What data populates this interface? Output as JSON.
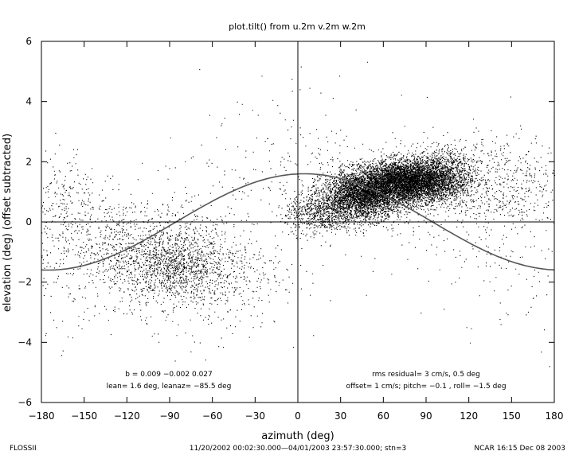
{
  "chart_data": {
    "type": "scatter",
    "title": "plot.tilt() from u.2m v.2m w.2m",
    "xlabel": "azimuth (deg)",
    "ylabel": "elevation (deg)  (offset subtracted)",
    "xlim": [
      -180,
      180
    ],
    "ylim": [
      -6,
      6
    ],
    "xticks": [
      -180,
      -150,
      -120,
      -90,
      -60,
      -30,
      0,
      30,
      60,
      90,
      120,
      150,
      180
    ],
    "yticks": [
      6,
      4,
      2,
      0,
      -2,
      -4,
      -6
    ],
    "xtick_labels": [
      "−180",
      "−150",
      "−120",
      "−90",
      "−60",
      "−30",
      "0",
      "30",
      "60",
      "90",
      "120",
      "150",
      "180"
    ],
    "ytick_labels": [
      "6",
      "4",
      "2",
      "0",
      "−2",
      "−4",
      "−6"
    ],
    "grid": false,
    "reference_lines": {
      "x": 0,
      "y": 0
    },
    "fit_curve": {
      "amplitude_deg": 1.6,
      "azimuth_deg": -85.5,
      "description": "elevation = 1.6*sin(azimuth + 85.5 - 90)"
    },
    "point_clusters": [
      {
        "x_center": -88,
        "y_center": -1.5,
        "x_spread": 18,
        "y_spread": 0.55,
        "weight": 900
      },
      {
        "x_center": -120,
        "y_center": -0.9,
        "x_spread": 25,
        "y_spread": 0.9,
        "weight": 700
      },
      {
        "x_center": -60,
        "y_center": -1.6,
        "x_spread": 25,
        "y_spread": 1.0,
        "weight": 600
      },
      {
        "x_center": 15,
        "y_center": 0.3,
        "x_spread": 12,
        "y_spread": 0.35,
        "weight": 700
      },
      {
        "x_center": 45,
        "y_center": 0.9,
        "x_spread": 14,
        "y_spread": 0.4,
        "weight": 3500
      },
      {
        "x_center": 75,
        "y_center": 1.35,
        "x_spread": 15,
        "y_spread": 0.35,
        "weight": 4500
      },
      {
        "x_center": 100,
        "y_center": 1.5,
        "x_spread": 12,
        "y_spread": 0.45,
        "weight": 1500
      },
      {
        "x_center": 140,
        "y_center": 1.3,
        "x_spread": 25,
        "y_spread": 0.8,
        "weight": 600
      },
      {
        "x_center": -165,
        "y_center": 0.5,
        "x_spread": 12,
        "y_spread": 1.0,
        "weight": 250
      }
    ],
    "annotations": {
      "left_line1": "b =  0.009 −0.002  0.027",
      "left_line2": "lean= 1.6 deg, leanaz= −85.5 deg",
      "right_line1": "rms residual= 3 cm/s, 0.5 deg",
      "right_line2": "offset= 1 cm/s; pitch= −0.1 , roll= −1.5 deg"
    }
  },
  "footer": {
    "left": "FLOSSII",
    "center": "11/20/2002 00:02:30.000—04/01/2003 23:57:30.000; stn=3",
    "right": "NCAR 16:15 Dec 08 2003"
  }
}
